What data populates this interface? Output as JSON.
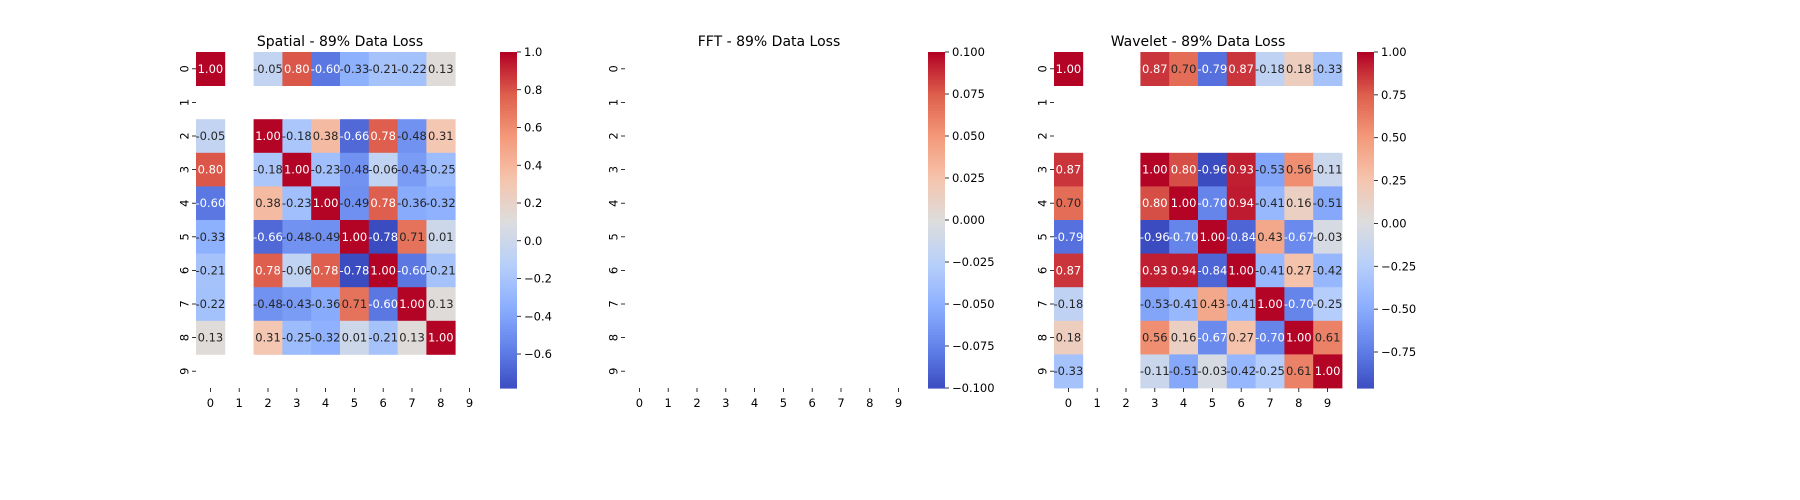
{
  "chart_data": [
    {
      "type": "heatmap",
      "title": "Spatial - 89% Data Loss",
      "x_categories": [
        "0",
        "1",
        "2",
        "3",
        "4",
        "5",
        "6",
        "7",
        "8",
        "9"
      ],
      "y_categories": [
        "0",
        "1",
        "2",
        "3",
        "4",
        "5",
        "6",
        "7",
        "8",
        "9"
      ],
      "values": [
        [
          1.0,
          null,
          -0.05,
          0.8,
          -0.6,
          -0.33,
          -0.21,
          -0.22,
          0.13,
          null
        ],
        [
          null,
          null,
          null,
          null,
          null,
          null,
          null,
          null,
          null,
          null
        ],
        [
          -0.05,
          null,
          1.0,
          -0.18,
          0.38,
          -0.66,
          0.78,
          -0.48,
          0.31,
          null
        ],
        [
          0.8,
          null,
          -0.18,
          1.0,
          -0.23,
          -0.48,
          -0.06,
          -0.43,
          -0.25,
          null
        ],
        [
          -0.6,
          null,
          0.38,
          -0.23,
          1.0,
          -0.49,
          0.78,
          -0.36,
          -0.32,
          null
        ],
        [
          -0.33,
          null,
          -0.66,
          -0.48,
          -0.49,
          1.0,
          -0.78,
          0.71,
          0.01,
          null
        ],
        [
          -0.21,
          null,
          0.78,
          -0.06,
          0.78,
          -0.78,
          1.0,
          -0.6,
          -0.21,
          null
        ],
        [
          -0.22,
          null,
          -0.48,
          -0.43,
          -0.36,
          0.71,
          -0.6,
          1.0,
          0.13,
          null
        ],
        [
          0.13,
          null,
          0.31,
          -0.25,
          -0.32,
          0.01,
          -0.21,
          0.13,
          1.0,
          null
        ],
        [
          null,
          null,
          null,
          null,
          null,
          null,
          null,
          null,
          null,
          null
        ]
      ],
      "vmin": -0.78,
      "vmax": 1.0,
      "colorbar_ticks": [
        1.0,
        0.8,
        0.6,
        0.4,
        0.2,
        0.0,
        -0.2,
        -0.4,
        -0.6
      ],
      "colorbar_tick_labels": [
        "1.0",
        "0.8",
        "0.6",
        "0.4",
        "0.2",
        "0.0",
        "−0.2",
        "−0.4",
        "−0.6"
      ],
      "colormap": "coolwarm",
      "annotated": true,
      "value_format": "0.00"
    },
    {
      "type": "heatmap",
      "title": "FFT - 89% Data Loss",
      "x_categories": [
        "0",
        "1",
        "2",
        "3",
        "4",
        "5",
        "6",
        "7",
        "8",
        "9"
      ],
      "y_categories": [
        "0",
        "1",
        "2",
        "3",
        "4",
        "5",
        "6",
        "7",
        "8",
        "9"
      ],
      "values": [
        [
          null,
          null,
          null,
          null,
          null,
          null,
          null,
          null,
          null,
          null
        ],
        [
          null,
          null,
          null,
          null,
          null,
          null,
          null,
          null,
          null,
          null
        ],
        [
          null,
          null,
          null,
          null,
          null,
          null,
          null,
          null,
          null,
          null
        ],
        [
          null,
          null,
          null,
          null,
          null,
          null,
          null,
          null,
          null,
          null
        ],
        [
          null,
          null,
          null,
          null,
          null,
          null,
          null,
          null,
          null,
          null
        ],
        [
          null,
          null,
          null,
          null,
          null,
          null,
          null,
          null,
          null,
          null
        ],
        [
          null,
          null,
          null,
          null,
          null,
          null,
          null,
          null,
          null,
          null
        ],
        [
          null,
          null,
          null,
          null,
          null,
          null,
          null,
          null,
          null,
          null
        ],
        [
          null,
          null,
          null,
          null,
          null,
          null,
          null,
          null,
          null,
          null
        ],
        [
          null,
          null,
          null,
          null,
          null,
          null,
          null,
          null,
          null,
          null
        ]
      ],
      "vmin": -0.1,
      "vmax": 0.1,
      "colorbar_ticks": [
        0.1,
        0.075,
        0.05,
        0.025,
        0.0,
        -0.025,
        -0.05,
        -0.075,
        -0.1
      ],
      "colorbar_tick_labels": [
        "0.100",
        "0.075",
        "0.050",
        "0.025",
        "0.000",
        "−0.025",
        "−0.050",
        "−0.075",
        "−0.100"
      ],
      "colormap": "coolwarm",
      "annotated": true,
      "value_format": "0.00"
    },
    {
      "type": "heatmap",
      "title": "Wavelet - 89% Data Loss",
      "x_categories": [
        "0",
        "1",
        "2",
        "3",
        "4",
        "5",
        "6",
        "7",
        "8",
        "9"
      ],
      "y_categories": [
        "0",
        "1",
        "2",
        "3",
        "4",
        "5",
        "6",
        "7",
        "8",
        "9"
      ],
      "values": [
        [
          1.0,
          null,
          null,
          0.87,
          0.7,
          -0.79,
          0.87,
          -0.18,
          0.18,
          -0.33
        ],
        [
          null,
          null,
          null,
          null,
          null,
          null,
          null,
          null,
          null,
          null
        ],
        [
          null,
          null,
          null,
          null,
          null,
          null,
          null,
          null,
          null,
          null
        ],
        [
          0.87,
          null,
          null,
          1.0,
          0.8,
          -0.96,
          0.93,
          -0.53,
          0.56,
          -0.11
        ],
        [
          0.7,
          null,
          null,
          0.8,
          1.0,
          -0.7,
          0.94,
          -0.41,
          0.16,
          -0.51
        ],
        [
          -0.79,
          null,
          null,
          -0.96,
          -0.7,
          1.0,
          -0.84,
          0.43,
          -0.67,
          -0.03
        ],
        [
          0.87,
          null,
          null,
          0.93,
          0.94,
          -0.84,
          1.0,
          -0.41,
          0.27,
          -0.42
        ],
        [
          -0.18,
          null,
          null,
          -0.53,
          -0.41,
          0.43,
          -0.41,
          1.0,
          -0.7,
          -0.25
        ],
        [
          0.18,
          null,
          null,
          0.56,
          0.16,
          -0.67,
          0.27,
          -0.7,
          1.0,
          0.61
        ],
        [
          -0.33,
          null,
          null,
          -0.11,
          -0.51,
          -0.03,
          -0.42,
          -0.25,
          0.61,
          1.0
        ]
      ],
      "vmin": -0.96,
      "vmax": 1.0,
      "colorbar_ticks": [
        1.0,
        0.75,
        0.5,
        0.25,
        0.0,
        -0.25,
        -0.5,
        -0.75
      ],
      "colorbar_tick_labels": [
        "1.00",
        "0.75",
        "0.50",
        "0.25",
        "0.00",
        "−0.25",
        "−0.50",
        "−0.75"
      ],
      "colormap": "coolwarm",
      "annotated": true,
      "value_format": "0.00"
    }
  ]
}
